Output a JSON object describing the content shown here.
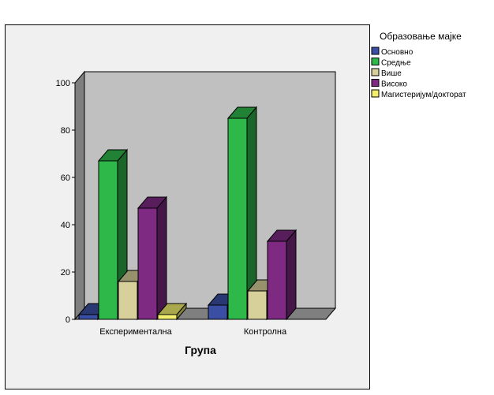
{
  "chart_data": {
    "type": "bar",
    "title": "",
    "xlabel": "Група",
    "ylabel": "",
    "categories": [
      "Експериментална",
      "Контролна"
    ],
    "series": [
      {
        "name": "Основно",
        "values": [
          2,
          6
        ],
        "color": "#3a4fa3"
      },
      {
        "name": "Средње",
        "values": [
          67,
          85
        ],
        "color": "#2fb84a"
      },
      {
        "name": "Више",
        "values": [
          16,
          12
        ],
        "color": "#d8d09a"
      },
      {
        "name": "Високо",
        "values": [
          47,
          33
        ],
        "color": "#7e2a82"
      },
      {
        "name": "Магистеријум/докторат",
        "values": [
          2,
          0
        ],
        "color": "#f3f06e"
      }
    ],
    "ylim": [
      0,
      100
    ],
    "yticks": [
      0,
      20,
      40,
      60,
      80,
      100
    ],
    "legend_title": "Образовање мајке",
    "legend_position": "top-right",
    "grid": false,
    "style": "3d-bars"
  }
}
